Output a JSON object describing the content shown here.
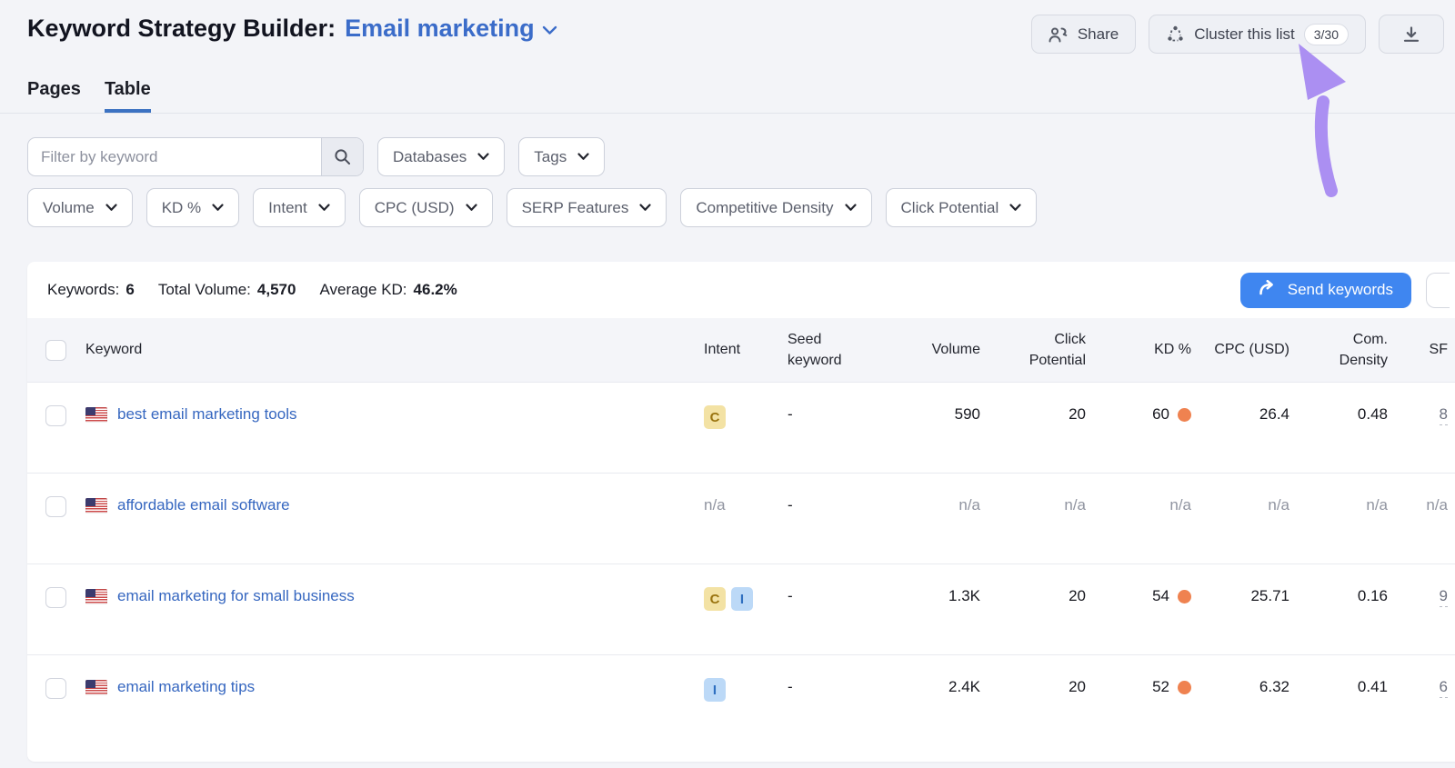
{
  "header": {
    "title": "Keyword Strategy Builder:",
    "list_name": "Email marketing",
    "share_label": "Share",
    "cluster_label": "Cluster this list",
    "cluster_count": "3/30"
  },
  "tabs": [
    {
      "label": "Pages",
      "active": false
    },
    {
      "label": "Table",
      "active": true
    }
  ],
  "filters": {
    "keyword_placeholder": "Filter by keyword",
    "databases_label": "Databases",
    "tags_label": "Tags",
    "metric_dropdowns": [
      "Volume",
      "KD %",
      "Intent",
      "CPC (USD)",
      "SERP Features",
      "Competitive Density",
      "Click Potential"
    ]
  },
  "summary": {
    "keywords_label": "Keywords:",
    "keywords_value": "6",
    "volume_label": "Total Volume:",
    "volume_value": "4,570",
    "kd_label": "Average KD:",
    "kd_value": "46.2%",
    "send_button_label": "Send keywords"
  },
  "table": {
    "columns": {
      "keyword": "Keyword",
      "intent": "Intent",
      "seed": "Seed keyword",
      "volume": "Volume",
      "click_potential": "Click Potential",
      "kd": "KD %",
      "cpc": "CPC (USD)",
      "density": "Com. Density",
      "sf": "SF"
    },
    "rows": [
      {
        "keyword": "best email marketing tools",
        "country": "us",
        "intents": [
          "C"
        ],
        "seed": "-",
        "volume": "590",
        "click_potential": "20",
        "kd": "60",
        "kd_dot": true,
        "cpc": "26.4",
        "density": "0.48",
        "sf": "8"
      },
      {
        "keyword": "affordable email software",
        "country": "us",
        "intents": [],
        "intent_text": "n/a",
        "seed": "-",
        "volume": "n/a",
        "click_potential": "n/a",
        "kd": "n/a",
        "kd_dot": false,
        "cpc": "n/a",
        "density": "n/a",
        "sf": "n/a"
      },
      {
        "keyword": "email marketing for small business",
        "country": "us",
        "intents": [
          "C",
          "I"
        ],
        "seed": "-",
        "volume": "1.3K",
        "click_potential": "20",
        "kd": "54",
        "kd_dot": true,
        "cpc": "25.71",
        "density": "0.16",
        "sf": "9"
      },
      {
        "keyword": "email marketing tips",
        "country": "us",
        "intents": [
          "I"
        ],
        "seed": "-",
        "volume": "2.4K",
        "click_potential": "20",
        "kd": "52",
        "kd_dot": true,
        "cpc": "6.32",
        "density": "0.41",
        "sf": "6"
      }
    ]
  },
  "icons": {
    "share": "two-people",
    "cluster": "dotted-cluster",
    "download": "download-tray",
    "search": "magnifier",
    "chevron": "chevron-down",
    "send": "curved-forward-arrow",
    "flag": "us-flag",
    "annotation": "purple-curved-arrow"
  },
  "colors": {
    "accent_blue": "#3f86f0",
    "link_blue": "#3667c0",
    "tab_underline": "#3c72c2",
    "kd_dot_orange": "#ef8250",
    "badge_c_bg": "#f3e2a4",
    "badge_c_text": "#9a7410",
    "badge_i_bg": "#bcd9f7",
    "badge_i_text": "#2f6fc0",
    "na_gray": "#9094a0",
    "arrow_purple": "#ab8ff2",
    "page_bg": "#f3f4f8"
  }
}
